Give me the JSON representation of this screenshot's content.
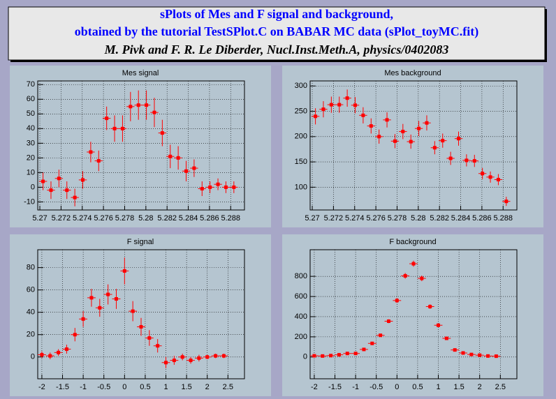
{
  "header": {
    "lines": [
      {
        "text": "sPlots of Mes and F signal and background,",
        "color": "#0000ff",
        "italic": false
      },
      {
        "text": "obtained by the tutorial TestSPlot.C on BABAR MC data (sPlot_toyMC.fit)",
        "color": "#0000ff",
        "italic": false
      },
      {
        "text": "M. Pivk and F. R. Le Diberder, Nucl.Inst.Meth.A, physics/0402083",
        "color": "#000000",
        "italic": true
      }
    ]
  },
  "chart_data": [
    {
      "type": "errorbar",
      "title": "Mes signal",
      "color": "#ff0000",
      "grid": true,
      "xerr": 0.000375,
      "x": [
        5.2703,
        5.27105,
        5.2718,
        5.27255,
        5.2733,
        5.27405,
        5.2748,
        5.27555,
        5.2763,
        5.27705,
        5.2778,
        5.27855,
        5.2793,
        5.28005,
        5.2808,
        5.28155,
        5.2823,
        5.28305,
        5.2838,
        5.28455,
        5.2853,
        5.28605,
        5.2868,
        5.28755,
        5.2883
      ],
      "values": [
        4,
        -2,
        6,
        -2,
        -7,
        5,
        24,
        18,
        47,
        40,
        40,
        55,
        56,
        56,
        51,
        37,
        21,
        20,
        11,
        13,
        -1,
        0,
        2,
        0,
        0
      ],
      "errors": [
        6,
        6,
        6,
        6,
        6,
        6,
        7,
        7,
        8,
        9,
        9,
        10,
        10,
        10,
        10,
        9,
        8,
        8,
        7,
        6,
        5,
        4,
        4,
        4,
        4
      ],
      "xlim": [
        5.2698,
        5.2893
      ],
      "ylim": [
        -15.5,
        72.5
      ],
      "xticks": [
        5.27,
        5.272,
        5.274,
        5.276,
        5.278,
        5.28,
        5.282,
        5.284,
        5.286,
        5.288
      ],
      "yticks": [
        -10,
        0,
        10,
        20,
        30,
        40,
        50,
        60,
        70
      ]
    },
    {
      "type": "errorbar",
      "title": "Mes background",
      "color": "#ff0000",
      "grid": true,
      "xerr": 0.000375,
      "x": [
        5.2703,
        5.27105,
        5.2718,
        5.27255,
        5.2733,
        5.27405,
        5.2748,
        5.27555,
        5.2763,
        5.27705,
        5.2778,
        5.27855,
        5.2793,
        5.28005,
        5.2808,
        5.28155,
        5.2823,
        5.28305,
        5.2838,
        5.28455,
        5.2853,
        5.28605,
        5.2868,
        5.28755,
        5.2883
      ],
      "values": [
        240,
        254,
        263,
        263,
        276,
        262,
        242,
        221,
        200,
        233,
        191,
        210,
        190,
        216,
        227,
        178,
        192,
        157,
        196,
        153,
        152,
        127,
        120,
        115,
        72
      ],
      "errors": [
        16,
        16,
        16,
        16,
        17,
        16,
        16,
        15,
        14,
        15,
        14,
        15,
        14,
        15,
        15,
        13,
        14,
        13,
        14,
        12,
        12,
        11,
        11,
        11,
        9
      ],
      "xlim": [
        5.2698,
        5.2893
      ],
      "ylim": [
        55,
        310
      ],
      "xticks": [
        5.27,
        5.272,
        5.274,
        5.276,
        5.278,
        5.28,
        5.282,
        5.284,
        5.286,
        5.288
      ],
      "yticks": [
        100,
        150,
        200,
        250,
        300
      ]
    },
    {
      "type": "errorbar",
      "title": "F signal",
      "color": "#ff0000",
      "grid": true,
      "xerr": 0.1,
      "x": [
        -2,
        -1.8,
        -1.6,
        -1.4,
        -1.2,
        -1,
        -0.8,
        -0.6,
        -0.4,
        -0.2,
        0,
        0.2,
        0.4,
        0.6,
        0.8,
        1,
        1.2,
        1.4,
        1.6,
        1.8,
        2,
        2.2,
        2.4
      ],
      "values": [
        2,
        1,
        4,
        7,
        20,
        34,
        53,
        44,
        56,
        52,
        77,
        41,
        27,
        17,
        10,
        -5,
        -3,
        0,
        -3,
        -1,
        0,
        1,
        1
      ],
      "errors": [
        3,
        3,
        3,
        4,
        6,
        7,
        8,
        8,
        9,
        9,
        12,
        9,
        8,
        7,
        6,
        5,
        4,
        3,
        3,
        3,
        2,
        2,
        2
      ],
      "xlim": [
        -2.1,
        2.9
      ],
      "ylim": [
        -19.5,
        96
      ],
      "xticks": [
        -2,
        -1.5,
        -1,
        -0.5,
        0,
        0.5,
        1,
        1.5,
        2,
        2.5
      ],
      "yticks": [
        0,
        20,
        40,
        60,
        80
      ]
    },
    {
      "type": "errorbar",
      "title": "F background",
      "color": "#ff0000",
      "grid": true,
      "xerr": 0.1,
      "x": [
        -2,
        -1.8,
        -1.6,
        -1.4,
        -1.2,
        -1,
        -0.8,
        -0.6,
        -0.4,
        -0.2,
        0,
        0.2,
        0.4,
        0.6,
        0.8,
        1,
        1.2,
        1.4,
        1.6,
        1.8,
        2,
        2.2,
        2.4
      ],
      "values": [
        12,
        10,
        14,
        22,
        35,
        35,
        75,
        135,
        215,
        355,
        560,
        805,
        925,
        780,
        500,
        315,
        185,
        70,
        40,
        25,
        18,
        10,
        8
      ],
      "errors": [
        4,
        4,
        4,
        5,
        6,
        6,
        9,
        12,
        15,
        19,
        24,
        28,
        30,
        28,
        22,
        18,
        14,
        8,
        6,
        5,
        4,
        3,
        3
      ],
      "xlim": [
        -2.1,
        2.9
      ],
      "ylim": [
        -216,
        1064
      ],
      "xticks": [
        -2,
        -1.5,
        -1,
        -0.5,
        0,
        0.5,
        1,
        1.5,
        2,
        2.5
      ],
      "yticks": [
        0,
        200,
        400,
        600,
        800
      ]
    }
  ]
}
